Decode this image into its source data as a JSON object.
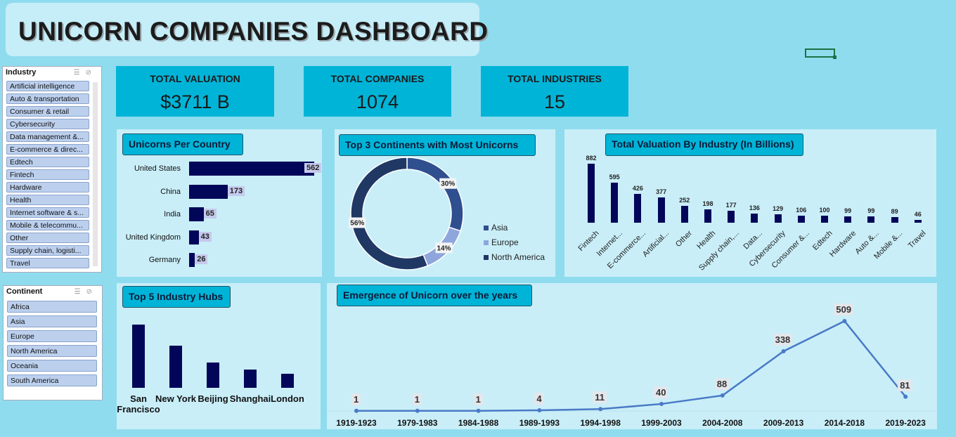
{
  "title": "UNICORN COMPANIES DASHBOARD",
  "kpis": [
    {
      "label": "TOTAL VALUATION",
      "value": "$3711 B"
    },
    {
      "label": "TOTAL COMPANIES",
      "value": "1074"
    },
    {
      "label": "TOTAL INDUSTRIES",
      "value": "15"
    }
  ],
  "industry_slicer": {
    "header": "Industry",
    "items": [
      "Artificial intelligence",
      "Auto & transportation",
      "Consumer & retail",
      "Cybersecurity",
      "Data management &...",
      "E-commerce & direc...",
      "Edtech",
      "Fintech",
      "Hardware",
      "Health",
      "Internet software & s...",
      "Mobile & telecommu...",
      "Other",
      "Supply chain, logisti...",
      "Travel"
    ]
  },
  "continent_slicer": {
    "header": "Continent",
    "items": [
      "Africa",
      "Asia",
      "Europe",
      "North America",
      "Oceania",
      "South America"
    ]
  },
  "panels": {
    "country": "Unicorns Per Country",
    "continents": "Top 3 Continents with Most Unicorns",
    "industry": "Total Valuation By Industry (In Billions)",
    "hubs": "Top 5 Industry Hubs",
    "years": "Emergence of Unicorn over the years"
  },
  "colors": {
    "accent": "#00b4d8",
    "bar": "#020659",
    "asia": "#2f4f8f",
    "europe": "#8ea6dc",
    "north_america": "#1f3864"
  },
  "chart_data": [
    {
      "type": "bar",
      "orientation": "horizontal",
      "title": "Unicorns Per Country",
      "categories": [
        "United States",
        "China",
        "India",
        "United Kingdom",
        "Germany"
      ],
      "values": [
        562,
        173,
        65,
        43,
        26
      ]
    },
    {
      "type": "pie",
      "title": "Top 3 Continents with Most Unicorns",
      "categories": [
        "Asia",
        "Europe",
        "North America"
      ],
      "values": [
        30,
        14,
        56
      ],
      "labels": [
        "30%",
        "14%",
        "56%"
      ],
      "legend": "right"
    },
    {
      "type": "bar",
      "title": "Total Valuation By Industry (In Billions)",
      "categories": [
        "Fintech",
        "Internet...",
        "E-commerce...",
        "Artificial...",
        "Other",
        "Health",
        "Supply chain,...",
        "Data...",
        "Cybersecurity",
        "Consumer &...",
        "Edtech",
        "Hardware",
        "Auto &...",
        "Mobile &...",
        "Travel"
      ],
      "values": [
        882,
        595,
        426,
        377,
        252,
        198,
        177,
        136,
        129,
        106,
        100,
        99,
        99,
        89,
        46
      ]
    },
    {
      "type": "bar",
      "title": "Top 5 Industry Hubs",
      "categories": [
        "San Francisco",
        "New York",
        "Beijing",
        "Shanghai",
        "London"
      ],
      "values": [
        100,
        67,
        40,
        29,
        22
      ]
    },
    {
      "type": "line",
      "title": "Emergence of Unicorn over the years",
      "categories": [
        "1919-1923",
        "1979-1983",
        "1984-1988",
        "1989-1993",
        "1994-1998",
        "1999-2003",
        "2004-2008",
        "2009-2013",
        "2014-2018",
        "2019-2023"
      ],
      "values": [
        1,
        1,
        1,
        4,
        11,
        40,
        88,
        338,
        509,
        81
      ]
    }
  ]
}
